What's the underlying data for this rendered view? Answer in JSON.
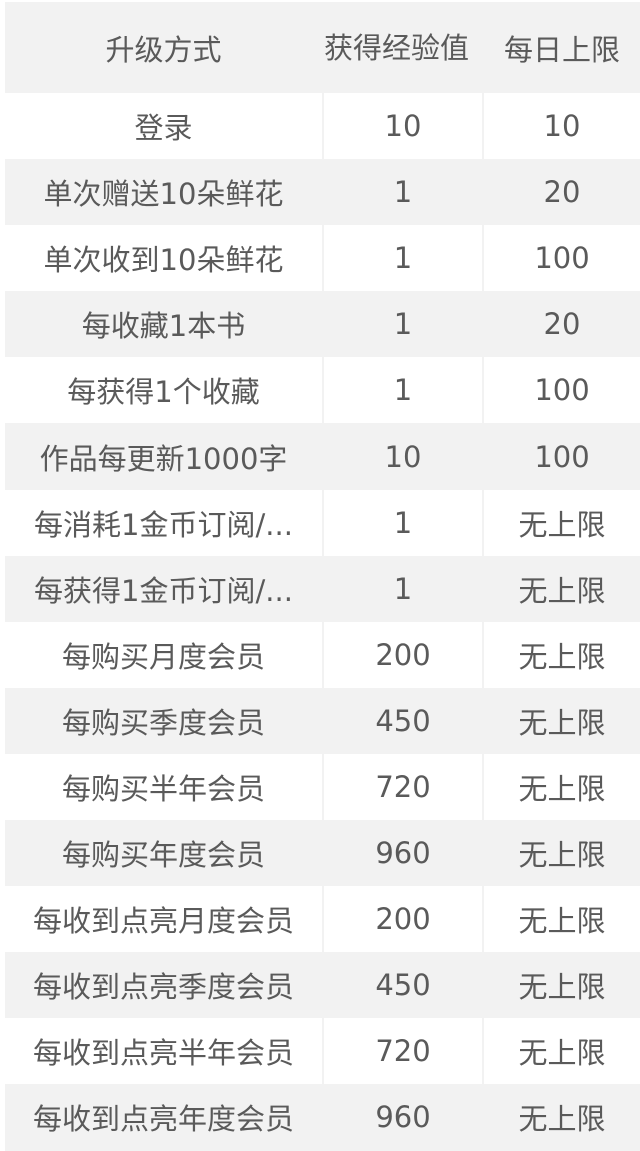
{
  "table": {
    "headers": [
      "升级方式",
      "获得经验值",
      "每日上限"
    ],
    "rows": [
      [
        "登录",
        "10",
        "10"
      ],
      [
        "单次赠送10朵鲜花",
        "1",
        "20"
      ],
      [
        "单次收到10朵鲜花",
        "1",
        "100"
      ],
      [
        "每收藏1本书",
        "1",
        "20"
      ],
      [
        "每获得1个收藏",
        "1",
        "100"
      ],
      [
        "作品每更新1000字",
        "10",
        "100"
      ],
      [
        "每消耗1金币订阅/...",
        "1",
        "无上限"
      ],
      [
        "每获得1金币订阅/...",
        "1",
        "无上限"
      ],
      [
        "每购买月度会员",
        "200",
        "无上限"
      ],
      [
        "每购买季度会员",
        "450",
        "无上限"
      ],
      [
        "每购买半年会员",
        "720",
        "无上限"
      ],
      [
        "每购买年度会员",
        "960",
        "无上限"
      ],
      [
        "每收到点亮月度会员",
        "200",
        "无上限"
      ],
      [
        "每收到点亮季度会员",
        "450",
        "无上限"
      ],
      [
        "每收到点亮半年会员",
        "720",
        "无上限"
      ],
      [
        "每收到点亮年度会员",
        "960",
        "无上限"
      ]
    ]
  },
  "colors": {
    "stripe": "#f2f2f2",
    "text": "#5a5a5a"
  }
}
